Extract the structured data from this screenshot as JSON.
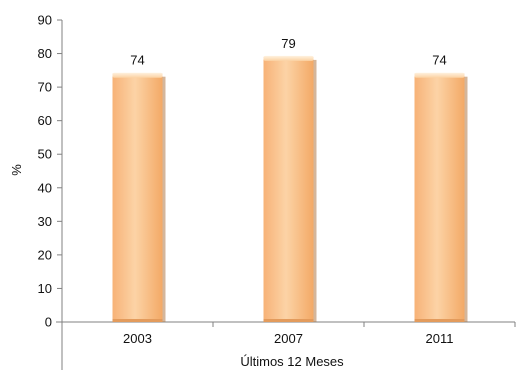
{
  "chart_data": {
    "type": "bar",
    "categories": [
      "2003",
      "2007",
      "2011"
    ],
    "values": [
      74,
      79,
      74
    ],
    "data_labels": [
      "74",
      "79",
      "74"
    ],
    "title": "",
    "xlabel": "Últimos 12 Meses",
    "ylabel": "%",
    "ylim": [
      0,
      90
    ],
    "yticks": [
      0,
      10,
      20,
      30,
      40,
      50,
      60,
      70,
      80,
      90
    ],
    "ytick_labels": [
      "0",
      "10",
      "20",
      "30",
      "40",
      "50",
      "60",
      "70",
      "80",
      "90"
    ],
    "grid": false,
    "legend": "none",
    "colors": {
      "bar_light": "#fde3c2",
      "bar_main": "#fbbf86",
      "bar_dark": "#d99a5f",
      "axis": "#808080",
      "text": "#111111"
    }
  }
}
